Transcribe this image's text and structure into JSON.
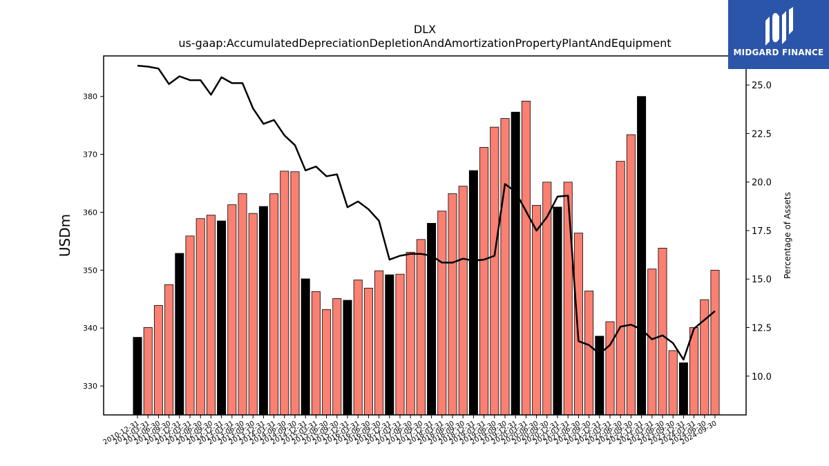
{
  "brand": {
    "name": "MIDGARD FINANCE"
  },
  "chart_data": {
    "type": "bar",
    "title": "DLX",
    "subtitle": "us-gaap:AccumulatedDepreciationDepletionAndAmortizationPropertyPlantAndEquipment",
    "ylabel": "USDm",
    "y2label": "Percentage of Assets",
    "ylim": [
      325,
      387
    ],
    "y2lim": [
      8.0,
      26.5
    ],
    "yticks": [
      330,
      340,
      350,
      360,
      370,
      380
    ],
    "y2ticks": [
      10.0,
      12.5,
      15.0,
      17.5,
      20.0,
      22.5,
      25.0
    ],
    "colors": {
      "annual": "#000000",
      "quarterly": "#fa8072",
      "line": "#000000"
    },
    "categories": [
      "2010-12-31",
      "2011-03-31",
      "2011-06-30",
      "2011-09-30",
      "2011-12-31",
      "2012-03-31",
      "2012-06-30",
      "2012-09-30",
      "2012-12-31",
      "2013-03-31",
      "2013-06-30",
      "2013-09-30",
      "2013-12-31",
      "2014-03-31",
      "2014-06-30",
      "2014-09-30",
      "2014-12-31",
      "2015-03-31",
      "2015-06-30",
      "2015-09-30",
      "2015-12-31",
      "2016-03-31",
      "2016-06-30",
      "2016-09-30",
      "2016-12-31",
      "2017-03-31",
      "2017-06-30",
      "2017-09-30",
      "2017-12-31",
      "2018-03-31",
      "2018-06-30",
      "2018-09-30",
      "2018-12-31",
      "2019-03-31",
      "2019-06-30",
      "2019-09-30",
      "2019-12-31",
      "2020-03-31",
      "2020-06-30",
      "2020-09-30",
      "2020-12-31",
      "2021-03-31",
      "2021-06-30",
      "2021-09-30",
      "2021-12-31",
      "2022-03-31",
      "2022-06-30",
      "2022-09-30",
      "2022-12-31",
      "2023-03-31",
      "2023-06-30",
      "2023-09-30",
      "2023-12-31",
      "2024-03-31",
      "2024-06-30",
      "2024-09-30"
    ],
    "series": [
      {
        "type": "bar",
        "values": [
          338.4,
          340.1,
          343.9,
          347.5,
          352.9,
          355.9,
          358.9,
          359.5,
          358.5,
          361.3,
          363.2,
          359.8,
          361.0,
          363.2,
          367.1,
          367.0,
          348.5,
          346.3,
          343.2,
          345.1,
          344.8,
          348.3,
          346.9,
          349.9,
          349.2,
          349.3,
          353.1,
          355.3,
          358.1,
          360.2,
          363.2,
          364.5,
          367.2,
          371.2,
          374.7,
          376.2,
          377.3,
          379.2,
          361.2,
          365.2,
          360.9,
          365.2,
          356.4,
          346.4,
          338.6,
          341.1,
          368.8,
          373.4,
          380.0,
          350.2,
          353.8,
          336.1,
          334.0,
          340.1,
          344.9,
          350.0
        ],
        "annual": [
          true,
          false,
          false,
          false,
          true,
          false,
          false,
          false,
          true,
          false,
          false,
          false,
          true,
          false,
          false,
          false,
          true,
          false,
          false,
          false,
          true,
          false,
          false,
          false,
          true,
          false,
          false,
          false,
          true,
          false,
          false,
          false,
          true,
          false,
          false,
          false,
          true,
          false,
          false,
          false,
          true,
          false,
          false,
          false,
          true,
          false,
          false,
          false,
          true,
          false,
          false,
          false,
          true,
          false,
          false,
          false
        ]
      },
      {
        "type": "line",
        "values": [
          26.0,
          25.95,
          25.85,
          25.05,
          25.45,
          25.25,
          25.25,
          24.5,
          25.4,
          25.1,
          25.1,
          23.8,
          23.0,
          23.2,
          22.4,
          21.9,
          20.6,
          20.8,
          20.3,
          20.4,
          18.7,
          19.0,
          18.6,
          18.0,
          16.0,
          16.2,
          16.3,
          16.3,
          16.2,
          15.85,
          15.85,
          16.05,
          15.95,
          16.0,
          16.2,
          19.9,
          19.5,
          18.5,
          17.5,
          18.2,
          19.25,
          19.3,
          11.8,
          11.6,
          11.15,
          11.6,
          12.55,
          12.65,
          12.4,
          11.9,
          12.1,
          11.7,
          10.85,
          12.45,
          12.9,
          13.35
        ]
      }
    ],
    "grid": false,
    "legend": "none"
  }
}
